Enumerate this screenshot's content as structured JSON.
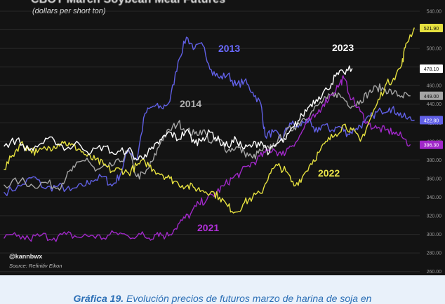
{
  "chart_data": {
    "type": "line",
    "title": "CBOT March Soybean Meal Futures",
    "subtitle": "(dollars per short ton)",
    "ylim": [
      256,
      546
    ],
    "y_ticks": [
      260,
      280,
      300,
      320,
      340,
      360,
      380,
      400,
      420,
      440,
      460,
      480,
      500,
      520,
      540
    ],
    "y_tick_labels": [
      "260.00",
      "280.00",
      "300.00",
      "320.00",
      "340.00",
      "360.00",
      "380.00",
      "400.00",
      "420.00",
      "440.00",
      "460.00",
      "480.00",
      "500.00",
      "520.00",
      "540.00"
    ],
    "x_range": [
      0,
      100
    ],
    "grid": "horizontal",
    "series": [
      {
        "name": "2013",
        "color": "#6160e6",
        "end_label": "422.80",
        "points": [
          [
            0,
            345
          ],
          [
            4,
            352
          ],
          [
            7,
            362
          ],
          [
            10,
            349
          ],
          [
            13,
            352
          ],
          [
            16,
            347
          ],
          [
            19,
            352
          ],
          [
            21,
            358
          ],
          [
            24,
            362
          ],
          [
            26,
            352
          ],
          [
            28,
            364
          ],
          [
            30,
            392
          ],
          [
            32,
            380
          ],
          [
            34,
            430
          ],
          [
            36,
            438
          ],
          [
            38,
            436
          ],
          [
            40,
            443
          ],
          [
            42,
            486
          ],
          [
            44,
            512
          ],
          [
            46,
            500
          ],
          [
            48,
            503
          ],
          [
            50,
            477
          ],
          [
            52,
            468
          ],
          [
            54,
            472
          ],
          [
            56,
            460
          ],
          [
            58,
            465
          ],
          [
            60,
            453
          ],
          [
            62,
            440
          ],
          [
            63,
            406
          ],
          [
            65,
            410
          ],
          [
            67,
            402
          ],
          [
            69,
            420
          ],
          [
            71,
            415
          ],
          [
            73,
            424
          ],
          [
            75,
            410
          ],
          [
            77,
            418
          ],
          [
            79,
            412
          ],
          [
            81,
            416
          ],
          [
            83,
            408
          ],
          [
            85,
            414
          ],
          [
            87,
            420
          ],
          [
            89,
            428
          ],
          [
            91,
            433
          ],
          [
            93,
            436
          ],
          [
            95,
            431
          ],
          [
            97,
            425
          ],
          [
            99,
            422.8
          ]
        ]
      },
      {
        "name": "2014",
        "color": "#a5a5a5",
        "end_label": "449.00",
        "points": [
          [
            0,
            353
          ],
          [
            4,
            358
          ],
          [
            7,
            352
          ],
          [
            10,
            356
          ],
          [
            13,
            350
          ],
          [
            15,
            362
          ],
          [
            17,
            372
          ],
          [
            20,
            382
          ],
          [
            22,
            368
          ],
          [
            25,
            372
          ],
          [
            28,
            378
          ],
          [
            30,
            390
          ],
          [
            32,
            362
          ],
          [
            34,
            365
          ],
          [
            36,
            380
          ],
          [
            38,
            402
          ],
          [
            40,
            412
          ],
          [
            42,
            420
          ],
          [
            44,
            412
          ],
          [
            46,
            408
          ],
          [
            48,
            412
          ],
          [
            50,
            398
          ],
          [
            52,
            402
          ],
          [
            54,
            390
          ],
          [
            56,
            394
          ],
          [
            58,
            388
          ],
          [
            60,
            382
          ],
          [
            62,
            390
          ],
          [
            64,
            392
          ],
          [
            66,
            400
          ],
          [
            68,
            410
          ],
          [
            70,
            415
          ],
          [
            72,
            424
          ],
          [
            74,
            430
          ],
          [
            76,
            440
          ],
          [
            78,
            446
          ],
          [
            80,
            452
          ],
          [
            82,
            446
          ],
          [
            84,
            438
          ],
          [
            86,
            444
          ],
          [
            88,
            452
          ],
          [
            90,
            458
          ],
          [
            92,
            456
          ],
          [
            94,
            452
          ],
          [
            96,
            449
          ],
          [
            98,
            449
          ]
        ]
      },
      {
        "name": "2021",
        "color": "#a028c8",
        "end_label": "396.30",
        "points": [
          [
            0,
            296
          ],
          [
            3,
            298
          ],
          [
            6,
            295
          ],
          [
            9,
            299
          ],
          [
            12,
            296
          ],
          [
            15,
            300
          ],
          [
            18,
            297
          ],
          [
            21,
            299
          ],
          [
            24,
            296
          ],
          [
            27,
            302
          ],
          [
            30,
            298
          ],
          [
            33,
            300
          ],
          [
            35,
            296
          ],
          [
            37,
            302
          ],
          [
            39,
            298
          ],
          [
            41,
            305
          ],
          [
            43,
            315
          ],
          [
            45,
            322
          ],
          [
            47,
            333
          ],
          [
            49,
            338
          ],
          [
            51,
            344
          ],
          [
            53,
            352
          ],
          [
            55,
            360
          ],
          [
            57,
            366
          ],
          [
            59,
            374
          ],
          [
            61,
            380
          ],
          [
            63,
            388
          ],
          [
            65,
            392
          ],
          [
            67,
            385
          ],
          [
            69,
            395
          ],
          [
            71,
            402
          ],
          [
            73,
            420
          ],
          [
            75,
            426
          ],
          [
            77,
            440
          ],
          [
            79,
            450
          ],
          [
            81,
            462
          ],
          [
            82,
            468
          ],
          [
            84,
            445
          ],
          [
            86,
            432
          ],
          [
            88,
            418
          ],
          [
            90,
            414
          ],
          [
            92,
            412
          ],
          [
            94,
            410
          ],
          [
            96,
            405
          ],
          [
            98,
            396.3
          ]
        ]
      },
      {
        "name": "2022",
        "color": "#e5e03f",
        "end_label": "521.90",
        "points": [
          [
            0,
            370
          ],
          [
            2,
            385
          ],
          [
            4,
            398
          ],
          [
            6,
            392
          ],
          [
            8,
            388
          ],
          [
            10,
            392
          ],
          [
            12,
            395
          ],
          [
            14,
            400
          ],
          [
            16,
            396
          ],
          [
            18,
            392
          ],
          [
            20,
            384
          ],
          [
            22,
            380
          ],
          [
            24,
            375
          ],
          [
            26,
            368
          ],
          [
            28,
            370
          ],
          [
            30,
            366
          ],
          [
            32,
            374
          ],
          [
            34,
            378
          ],
          [
            36,
            370
          ],
          [
            38,
            365
          ],
          [
            40,
            360
          ],
          [
            42,
            355
          ],
          [
            44,
            352
          ],
          [
            46,
            350
          ],
          [
            48,
            347
          ],
          [
            50,
            346
          ],
          [
            52,
            340
          ],
          [
            54,
            330
          ],
          [
            56,
            324
          ],
          [
            58,
            334
          ],
          [
            60,
            340
          ],
          [
            62,
            344
          ],
          [
            64,
            365
          ],
          [
            66,
            374
          ],
          [
            68,
            368
          ],
          [
            70,
            352
          ],
          [
            72,
            362
          ],
          [
            74,
            376
          ],
          [
            76,
            388
          ],
          [
            78,
            400
          ],
          [
            80,
            408
          ],
          [
            82,
            418
          ],
          [
            84,
            412
          ],
          [
            86,
            400
          ],
          [
            88,
            420
          ],
          [
            90,
            440
          ],
          [
            92,
            460
          ],
          [
            94,
            468
          ],
          [
            96,
            482
          ],
          [
            97,
            505
          ],
          [
            99,
            521.9
          ]
        ]
      },
      {
        "name": "2023",
        "color": "#ffffff",
        "end_label": "478.10",
        "points": [
          [
            0,
            395
          ],
          [
            3,
            402
          ],
          [
            6,
            390
          ],
          [
            9,
            398
          ],
          [
            12,
            402
          ],
          [
            15,
            392
          ],
          [
            18,
            398
          ],
          [
            21,
            388
          ],
          [
            24,
            395
          ],
          [
            27,
            386
          ],
          [
            30,
            392
          ],
          [
            32,
            380
          ],
          [
            34,
            386
          ],
          [
            36,
            392
          ],
          [
            38,
            402
          ],
          [
            40,
            410
          ],
          [
            42,
            402
          ],
          [
            44,
            412
          ],
          [
            46,
            398
          ],
          [
            48,
            404
          ],
          [
            50,
            410
          ],
          [
            52,
            400
          ],
          [
            54,
            395
          ],
          [
            56,
            402
          ],
          [
            58,
            392
          ],
          [
            60,
            396
          ],
          [
            62,
            400
          ],
          [
            64,
            388
          ],
          [
            66,
            398
          ],
          [
            68,
            402
          ],
          [
            70,
            416
          ],
          [
            72,
            428
          ],
          [
            74,
            440
          ],
          [
            76,
            448
          ],
          [
            78,
            456
          ],
          [
            80,
            470
          ],
          [
            82,
            474
          ],
          [
            84,
            478.1
          ]
        ]
      }
    ]
  },
  "labels": {
    "y2013": "2013",
    "y2014": "2014",
    "y2021": "2021",
    "y2022": "2022",
    "y2023": "2023"
  },
  "watermark": "@kannbwx",
  "source": "Source: Refinitiv Eikon",
  "caption": {
    "strong": "Gráfica 19.",
    "text": "Evolución precios de futuros marzo de harina de soja en"
  }
}
